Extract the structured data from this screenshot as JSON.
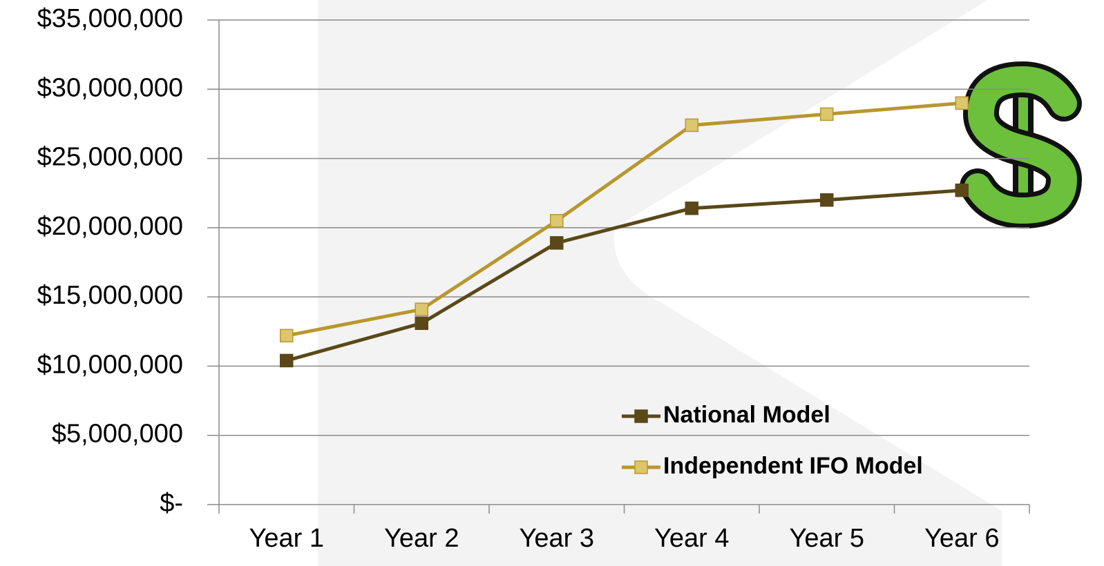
{
  "chart_data": {
    "type": "line",
    "categories": [
      "Year 1",
      "Year 2",
      "Year 3",
      "Year 4",
      "Year 5",
      "Year 6"
    ],
    "series": [
      {
        "name": "National Model",
        "color": "#5a4818",
        "marker_color": "#5a4818",
        "values": [
          10400000,
          13100000,
          18900000,
          21400000,
          22000000,
          22700000
        ]
      },
      {
        "name": "Independent IFO Model",
        "color": "#b8972f",
        "marker_color": "#dcc66e",
        "values": [
          12200000,
          14100000,
          20500000,
          27400000,
          28200000,
          29000000
        ]
      }
    ],
    "ylim": [
      0,
      35000000
    ],
    "yticks": [
      {
        "value": 0,
        "label": "$-"
      },
      {
        "value": 5000000,
        "label": "$5,000,000"
      },
      {
        "value": 10000000,
        "label": "$10,000,000"
      },
      {
        "value": 15000000,
        "label": "$15,000,000"
      },
      {
        "value": 20000000,
        "label": "$20,000,000"
      },
      {
        "value": 25000000,
        "label": "$25,000,000"
      },
      {
        "value": 30000000,
        "label": "$30,000,000"
      },
      {
        "value": 35000000,
        "label": "$35,000,000"
      }
    ],
    "grid": true,
    "legend": "lower right"
  }
}
